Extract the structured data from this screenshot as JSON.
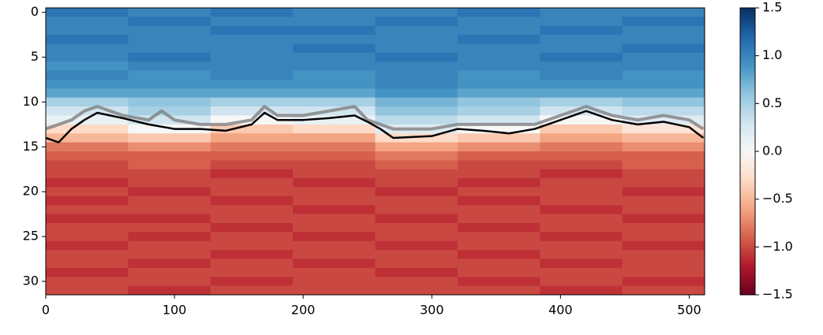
{
  "chart_data": {
    "type": "heatmap",
    "x_edges": [
      0,
      64,
      128,
      192,
      256,
      320,
      384,
      448,
      512
    ],
    "y_edges": [
      -0.5,
      0.5,
      1.5,
      2.5,
      3.5,
      4.5,
      5.5,
      6.5,
      7.5,
      8.5,
      9.5,
      10.5,
      11.5,
      12.5,
      13.5,
      14.5,
      15.5,
      16.5,
      17.5,
      18.5,
      19.5,
      20.5,
      21.5,
      22.5,
      23.5,
      24.5,
      25.5,
      26.5,
      27.5,
      28.5,
      29.5,
      30.5,
      31.5
    ],
    "z": [
      [
        1.1,
        1.0,
        1.1,
        1.0,
        1.0,
        1.1,
        1.0,
        1.0
      ],
      [
        1.0,
        1.1,
        1.0,
        1.0,
        1.1,
        1.0,
        1.0,
        1.1
      ],
      [
        1.0,
        1.0,
        1.1,
        1.1,
        1.0,
        1.0,
        1.1,
        1.0
      ],
      [
        1.1,
        1.0,
        1.0,
        1.0,
        1.0,
        1.1,
        1.0,
        1.0
      ],
      [
        1.0,
        1.0,
        1.0,
        1.1,
        1.0,
        1.0,
        1.0,
        1.1
      ],
      [
        1.0,
        1.1,
        1.0,
        1.0,
        1.1,
        1.0,
        1.1,
        1.0
      ],
      [
        0.9,
        1.0,
        1.0,
        1.0,
        1.0,
        1.0,
        1.0,
        1.0
      ],
      [
        1.0,
        0.9,
        1.0,
        0.9,
        1.0,
        0.9,
        1.0,
        0.9
      ],
      [
        0.9,
        0.9,
        0.9,
        0.9,
        1.0,
        0.9,
        0.9,
        0.9
      ],
      [
        0.8,
        0.8,
        0.8,
        0.8,
        0.9,
        0.8,
        0.8,
        0.8
      ],
      [
        0.5,
        0.6,
        0.5,
        0.5,
        0.7,
        0.6,
        0.5,
        0.6
      ],
      [
        0.3,
        0.5,
        0.3,
        0.3,
        0.6,
        0.5,
        0.3,
        0.4
      ],
      [
        0.1,
        0.3,
        0.0,
        0.1,
        0.4,
        0.3,
        0.0,
        0.2
      ],
      [
        -0.3,
        0.0,
        -0.4,
        -0.3,
        0.2,
        0.0,
        -0.4,
        -0.2
      ],
      [
        -0.5,
        -0.4,
        -0.6,
        -0.6,
        -0.3,
        -0.4,
        -0.6,
        -0.5
      ],
      [
        -0.8,
        -0.7,
        -0.8,
        -0.8,
        -0.6,
        -0.7,
        -0.8,
        -0.7
      ],
      [
        -0.9,
        -0.9,
        -0.9,
        -0.9,
        -0.8,
        -0.9,
        -0.9,
        -0.9
      ],
      [
        -1.0,
        -0.9,
        -1.0,
        -1.0,
        -0.9,
        -1.0,
        -1.0,
        -0.9
      ],
      [
        -1.0,
        -1.0,
        -1.1,
        -1.0,
        -1.0,
        -1.0,
        -1.1,
        -1.0
      ],
      [
        -1.1,
        -1.0,
        -1.0,
        -1.1,
        -1.0,
        -1.1,
        -1.0,
        -1.0
      ],
      [
        -1.0,
        -1.1,
        -1.0,
        -1.0,
        -1.1,
        -1.0,
        -1.0,
        -1.1
      ],
      [
        -1.1,
        -1.0,
        -1.1,
        -1.0,
        -1.0,
        -1.1,
        -1.0,
        -1.0
      ],
      [
        -1.0,
        -1.0,
        -1.0,
        -1.1,
        -1.0,
        -1.0,
        -1.1,
        -1.0
      ],
      [
        -1.1,
        -1.1,
        -1.0,
        -1.0,
        -1.1,
        -1.0,
        -1.0,
        -1.1
      ],
      [
        -1.0,
        -1.0,
        -1.1,
        -1.0,
        -1.0,
        -1.1,
        -1.0,
        -1.0
      ],
      [
        -1.0,
        -1.1,
        -1.0,
        -1.1,
        -1.0,
        -1.0,
        -1.1,
        -1.0
      ],
      [
        -1.1,
        -1.0,
        -1.0,
        -1.0,
        -1.1,
        -1.0,
        -1.0,
        -1.1
      ],
      [
        -1.0,
        -1.0,
        -1.1,
        -1.0,
        -1.0,
        -1.1,
        -1.0,
        -1.0
      ],
      [
        -1.0,
        -1.1,
        -1.0,
        -1.1,
        -1.0,
        -1.0,
        -1.1,
        -1.0
      ],
      [
        -1.1,
        -1.0,
        -1.0,
        -1.0,
        -1.1,
        -1.0,
        -1.0,
        -1.0
      ],
      [
        -1.0,
        -1.0,
        -1.1,
        -1.0,
        -1.0,
        -1.1,
        -1.0,
        -1.1
      ],
      [
        -1.0,
        -1.1,
        -1.0,
        -1.0,
        -1.0,
        -1.0,
        -1.1,
        -1.0
      ]
    ],
    "zlim": [
      -1.5,
      1.5
    ],
    "colormap": [
      "#67001f",
      "#b2182b",
      "#d6604d",
      "#f4a582",
      "#fddbc7",
      "#f7f7f7",
      "#d1e5f0",
      "#92c5de",
      "#4393c3",
      "#2166ac",
      "#053061"
    ],
    "series": [
      {
        "color": "#808080",
        "x": [
          0,
          20,
          30,
          40,
          50,
          60,
          80,
          90,
          100,
          120,
          140,
          160,
          170,
          180,
          200,
          220,
          240,
          250,
          260,
          270,
          300,
          320,
          340,
          360,
          380,
          400,
          420,
          440,
          460,
          480,
          500,
          511
        ],
        "values": [
          13,
          12,
          11,
          10.5,
          11,
          11.5,
          12,
          11,
          12,
          12.5,
          12.5,
          12,
          10.5,
          11.5,
          11.5,
          11,
          10.5,
          12,
          12.5,
          13,
          13,
          12.5,
          12.5,
          12.5,
          12.5,
          11.5,
          10.5,
          11.5,
          12,
          11.5,
          12,
          13
        ]
      },
      {
        "color": "#000000",
        "x": [
          0,
          10,
          20,
          30,
          40,
          50,
          60,
          80,
          100,
          120,
          140,
          160,
          170,
          180,
          200,
          220,
          240,
          250,
          260,
          270,
          300,
          320,
          340,
          360,
          380,
          400,
          420,
          440,
          460,
          480,
          500,
          511
        ],
        "values": [
          14,
          14.5,
          13,
          12,
          11.2,
          11.5,
          11.8,
          12.5,
          13,
          13,
          13.2,
          12.5,
          11.2,
          12,
          12,
          11.8,
          11.5,
          12.2,
          13,
          14,
          13.8,
          13,
          13.2,
          13.5,
          13,
          12,
          11,
          12,
          12.5,
          12.2,
          12.8,
          14
        ]
      }
    ],
    "xlim": [
      0,
      512
    ],
    "ylim": [
      31.5,
      -0.5
    ],
    "xticks": [
      0,
      100,
      200,
      300,
      400,
      500
    ],
    "yticks": [
      0,
      5,
      10,
      15,
      20,
      25,
      30
    ],
    "cticks": [
      {
        "value": 1.5,
        "label": "1.5"
      },
      {
        "value": 1.0,
        "label": "1.0"
      },
      {
        "value": 0.5,
        "label": "0.5"
      },
      {
        "value": 0.0,
        "label": "0.0"
      },
      {
        "value": -0.5,
        "label": "−0.5"
      },
      {
        "value": -1.0,
        "label": "−1.0"
      },
      {
        "value": -1.5,
        "label": "−1.5"
      }
    ]
  }
}
